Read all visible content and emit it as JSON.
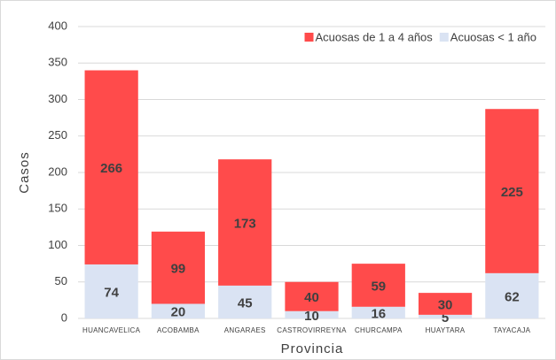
{
  "chart_data": {
    "type": "bar",
    "stacked": true,
    "categories": [
      "HUANCAVELICA",
      "ACOBAMBA",
      "ANGARAES",
      "CASTROVIRREYNA",
      "CHURCAMPA",
      "HUAYTARA",
      "TAYACAJA"
    ],
    "series": [
      {
        "name": "Acuosas < 1 año",
        "color": "#dae3f3",
        "values": [
          74,
          20,
          45,
          10,
          16,
          5,
          62
        ]
      },
      {
        "name": "Acuosas de 1 a 4 años",
        "color": "#ff4b4b",
        "values": [
          266,
          99,
          173,
          40,
          59,
          30,
          225
        ]
      }
    ],
    "ylim": [
      0,
      400
    ],
    "yticks": [
      0,
      50,
      100,
      150,
      200,
      250,
      300,
      350,
      400
    ],
    "y_label": "Casos",
    "x_label": "Provincia",
    "grid": true,
    "legend": "top-right"
  }
}
